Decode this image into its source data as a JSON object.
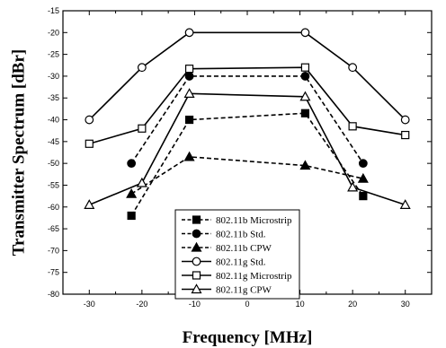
{
  "chart_data": {
    "type": "line",
    "title": "",
    "xlabel": "Frequency [MHz]",
    "ylabel": "Transmitter Spectrum [dBr]",
    "xlim": [
      -35,
      35
    ],
    "ylim": [
      -80,
      -15
    ],
    "xticks": [
      -30,
      -20,
      -10,
      0,
      10,
      20,
      30
    ],
    "yticks": [
      -15,
      -20,
      -25,
      -30,
      -35,
      -40,
      -45,
      -50,
      -55,
      -60,
      -65,
      -70,
      -75,
      -80
    ],
    "grid": false,
    "legend_position": "bottom-center",
    "series": [
      {
        "name": "802.11b Microstrip",
        "line": "dashed",
        "marker": "filled-square",
        "x": [
          -22,
          -11,
          11,
          22
        ],
        "y": [
          -62,
          -40,
          -38.5,
          -57.5
        ]
      },
      {
        "name": "802.11b Std.",
        "line": "dashed",
        "marker": "filled-circle",
        "x": [
          -22,
          -11,
          11,
          22
        ],
        "y": [
          -50,
          -30,
          -30,
          -50
        ]
      },
      {
        "name": "802.11b CPW",
        "line": "dashed",
        "marker": "filled-triangle",
        "x": [
          -22,
          -11,
          11,
          22
        ],
        "y": [
          -57,
          -48.5,
          -50.5,
          -53.5
        ]
      },
      {
        "name": "802.11g Std.",
        "line": "solid",
        "marker": "open-circle",
        "x": [
          -30,
          -20,
          -11,
          11,
          20,
          30
        ],
        "y": [
          -40,
          -28,
          -20,
          -20,
          -28,
          -40
        ]
      },
      {
        "name": "802.11g Microstrip",
        "line": "solid",
        "marker": "open-square",
        "x": [
          -30,
          -20,
          -11,
          11,
          20,
          30
        ],
        "y": [
          -45.5,
          -42,
          -28.3,
          -28,
          -41.5,
          -43.5
        ]
      },
      {
        "name": "802.11g CPW",
        "line": "solid",
        "marker": "open-triangle",
        "x": [
          -30,
          -20,
          -11,
          11,
          20,
          30
        ],
        "y": [
          -59.5,
          -54.5,
          -34,
          -34.7,
          -55.5,
          -59.5
        ]
      }
    ]
  }
}
